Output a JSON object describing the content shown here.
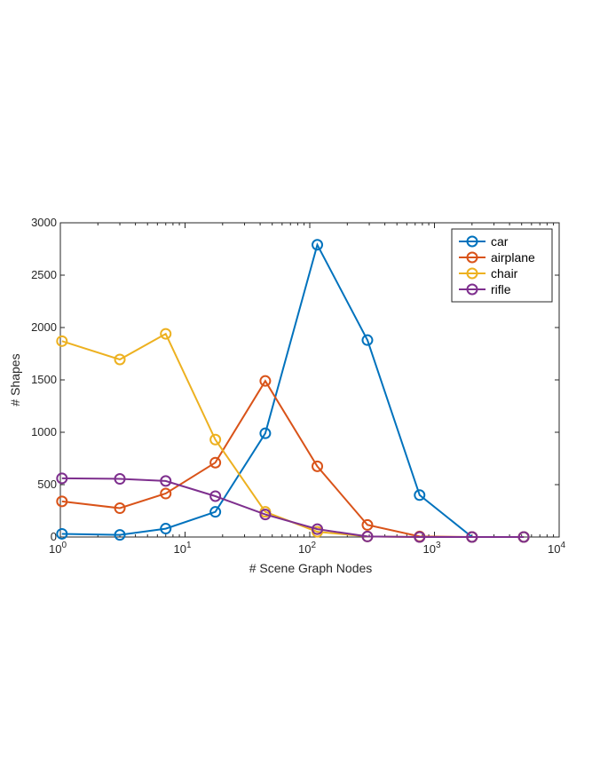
{
  "chart_data": {
    "type": "line",
    "xlabel": "# Scene Graph Nodes",
    "ylabel": "# Shapes",
    "x_scale": "log",
    "xlim": [
      1,
      10000
    ],
    "ylim": [
      0,
      3000
    ],
    "y_ticks": [
      0,
      500,
      1000,
      1500,
      2000,
      2500,
      3000
    ],
    "x_ticks": [
      {
        "value": 1,
        "base": "10",
        "exp": "0"
      },
      {
        "value": 10,
        "base": "10",
        "exp": "1"
      },
      {
        "value": 100,
        "base": "10",
        "exp": "2"
      },
      {
        "value": 1000,
        "base": "10",
        "exp": "3"
      },
      {
        "value": 10000,
        "base": "10",
        "exp": "4"
      }
    ],
    "legend_position": "top-right",
    "grid": false,
    "series": [
      {
        "name": "car",
        "color": "#0072BD",
        "points": [
          [
            1.03,
            30
          ],
          [
            3,
            20
          ],
          [
            7,
            80
          ],
          [
            17.5,
            240
          ],
          [
            44,
            990
          ],
          [
            115,
            2790
          ],
          [
            290,
            1880
          ],
          [
            760,
            400
          ],
          [
            2000,
            0
          ],
          [
            5200,
            0
          ]
        ]
      },
      {
        "name": "airplane",
        "color": "#D95319",
        "points": [
          [
            1.03,
            340
          ],
          [
            3,
            275
          ],
          [
            7,
            415
          ],
          [
            17.5,
            710
          ],
          [
            44,
            1490
          ],
          [
            115,
            675
          ],
          [
            290,
            115
          ],
          [
            760,
            5
          ],
          [
            2000,
            0
          ],
          [
            5200,
            0
          ]
        ]
      },
      {
        "name": "chair",
        "color": "#EDB120",
        "points": [
          [
            1.03,
            1870
          ],
          [
            3,
            1695
          ],
          [
            7,
            1940
          ],
          [
            17.5,
            930
          ],
          [
            44,
            240
          ],
          [
            115,
            50
          ],
          [
            290,
            5
          ],
          [
            760,
            0
          ],
          [
            2000,
            0
          ],
          [
            5200,
            0
          ]
        ]
      },
      {
        "name": "rifle",
        "color": "#7E2F8E",
        "points": [
          [
            1.03,
            560
          ],
          [
            3,
            555
          ],
          [
            7,
            535
          ],
          [
            17.5,
            390
          ],
          [
            44,
            215
          ],
          [
            115,
            75
          ],
          [
            290,
            5
          ],
          [
            760,
            0
          ],
          [
            2000,
            0
          ],
          [
            5200,
            0
          ]
        ]
      }
    ]
  }
}
